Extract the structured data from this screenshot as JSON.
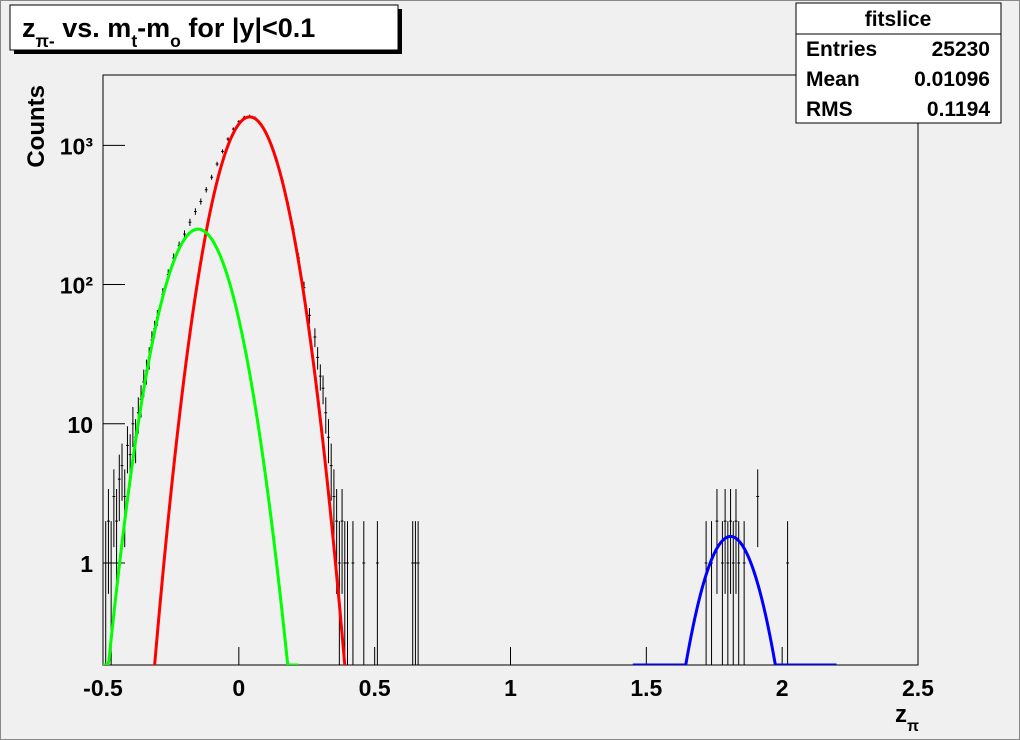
{
  "chart_data": {
    "type": "errorbar",
    "title": [
      "z",
      "π-",
      " vs. m",
      "t",
      "-m",
      "o",
      " for |y|<0.1"
    ],
    "xlabel": [
      "z",
      "π"
    ],
    "ylabel": "Counts",
    "xlim": [
      -0.5,
      2.5
    ],
    "ylim": [
      0.185,
      3200
    ],
    "log_y": true,
    "xticks": [
      -0.5,
      0,
      0.5,
      1,
      1.5,
      2,
      2.5
    ],
    "yticks": [
      1,
      10,
      {
        "value": 100,
        "label": "10²"
      },
      {
        "value": 1000,
        "label": "10³"
      }
    ],
    "stats": {
      "title": "fitslice",
      "rows": [
        [
          "Entries",
          25230
        ],
        [
          "Mean",
          0.01096
        ],
        [
          "RMS",
          0.1194
        ]
      ]
    },
    "data": {
      "color": "#000000",
      "x": [
        -0.49,
        -0.48,
        -0.47,
        -0.46,
        -0.45,
        -0.44,
        -0.43,
        -0.42,
        -0.41,
        -0.4,
        -0.39,
        -0.38,
        -0.37,
        -0.36,
        -0.35,
        -0.34,
        -0.33,
        -0.32,
        -0.31,
        -0.3,
        -0.28,
        -0.26,
        -0.24,
        -0.22,
        -0.2,
        -0.18,
        -0.16,
        -0.14,
        -0.12,
        -0.1,
        -0.08,
        -0.06,
        -0.04,
        -0.02,
        0.0,
        0.02,
        0.04,
        0.06,
        0.08,
        0.1,
        0.12,
        0.14,
        0.16,
        0.18,
        0.2,
        0.22,
        0.24,
        0.26,
        0.28,
        0.29,
        0.3,
        0.31,
        0.32,
        0.33,
        0.34,
        0.35,
        0.36,
        0.37,
        0.38,
        0.39,
        0.4,
        0.42,
        0.46,
        0.51,
        0.64,
        0.65,
        0.66,
        1.72,
        1.74,
        1.76,
        1.78,
        1.79,
        1.8,
        1.81,
        1.82,
        1.83,
        1.84,
        1.86,
        1.91,
        2.02
      ],
      "values": [
        1,
        2,
        1,
        3,
        2,
        4,
        5,
        3,
        7,
        6,
        10,
        8,
        12,
        15,
        20,
        24,
        30,
        40,
        48,
        58,
        85,
        118,
        155,
        190,
        230,
        280,
        335,
        395,
        480,
        590,
        735,
        905,
        1110,
        1310,
        1480,
        1590,
        1620,
        1570,
        1430,
        1235,
        1000,
        770,
        560,
        385,
        250,
        155,
        95,
        60,
        42,
        30,
        22,
        18,
        12,
        8,
        5,
        3,
        2,
        1,
        2,
        1,
        1,
        1,
        1,
        1,
        1,
        1,
        1,
        1,
        1,
        2,
        1,
        2,
        1,
        2,
        1,
        2,
        1,
        1,
        3,
        1
      ],
      "errors": [
        1,
        1.4,
        1,
        1.7,
        1.4,
        2,
        2.2,
        1.7,
        2.6,
        2.4,
        3.2,
        2.8,
        3.5,
        3.9,
        4.5,
        4.9,
        5.5,
        6.3,
        6.9,
        7.6,
        9.2,
        10.9,
        12.4,
        13.8,
        15.2,
        16.7,
        18.3,
        19.9,
        21.9,
        24.3,
        27.1,
        30.1,
        33.3,
        36.2,
        38.5,
        39.9,
        40.2,
        39.6,
        37.8,
        35.1,
        31.6,
        27.7,
        23.7,
        19.6,
        15.8,
        12.4,
        9.7,
        7.7,
        6.5,
        5.5,
        4.7,
        4.2,
        3.5,
        2.8,
        2.2,
        1.7,
        1.4,
        1,
        1.4,
        1,
        1,
        1,
        1,
        1,
        1,
        1,
        1,
        1,
        1,
        1.4,
        1,
        1.4,
        1,
        1.4,
        1,
        1.4,
        1,
        1,
        1.7,
        1
      ]
    },
    "fits": [
      {
        "color": "#ff0000",
        "amplitude": 1600,
        "mean": 0.04,
        "sigma": 0.0822,
        "range": [
          -0.31,
          0.39
        ]
      },
      {
        "color": "#00ff00",
        "amplitude": 250,
        "mean": -0.15,
        "sigma": 0.0869,
        "range": [
          -0.5,
          0.22
        ]
      },
      {
        "color": "#0000ff",
        "amplitude": 1.55,
        "mean": 1.81,
        "sigma": 0.08,
        "range": [
          1.45,
          2.2
        ]
      }
    ]
  }
}
